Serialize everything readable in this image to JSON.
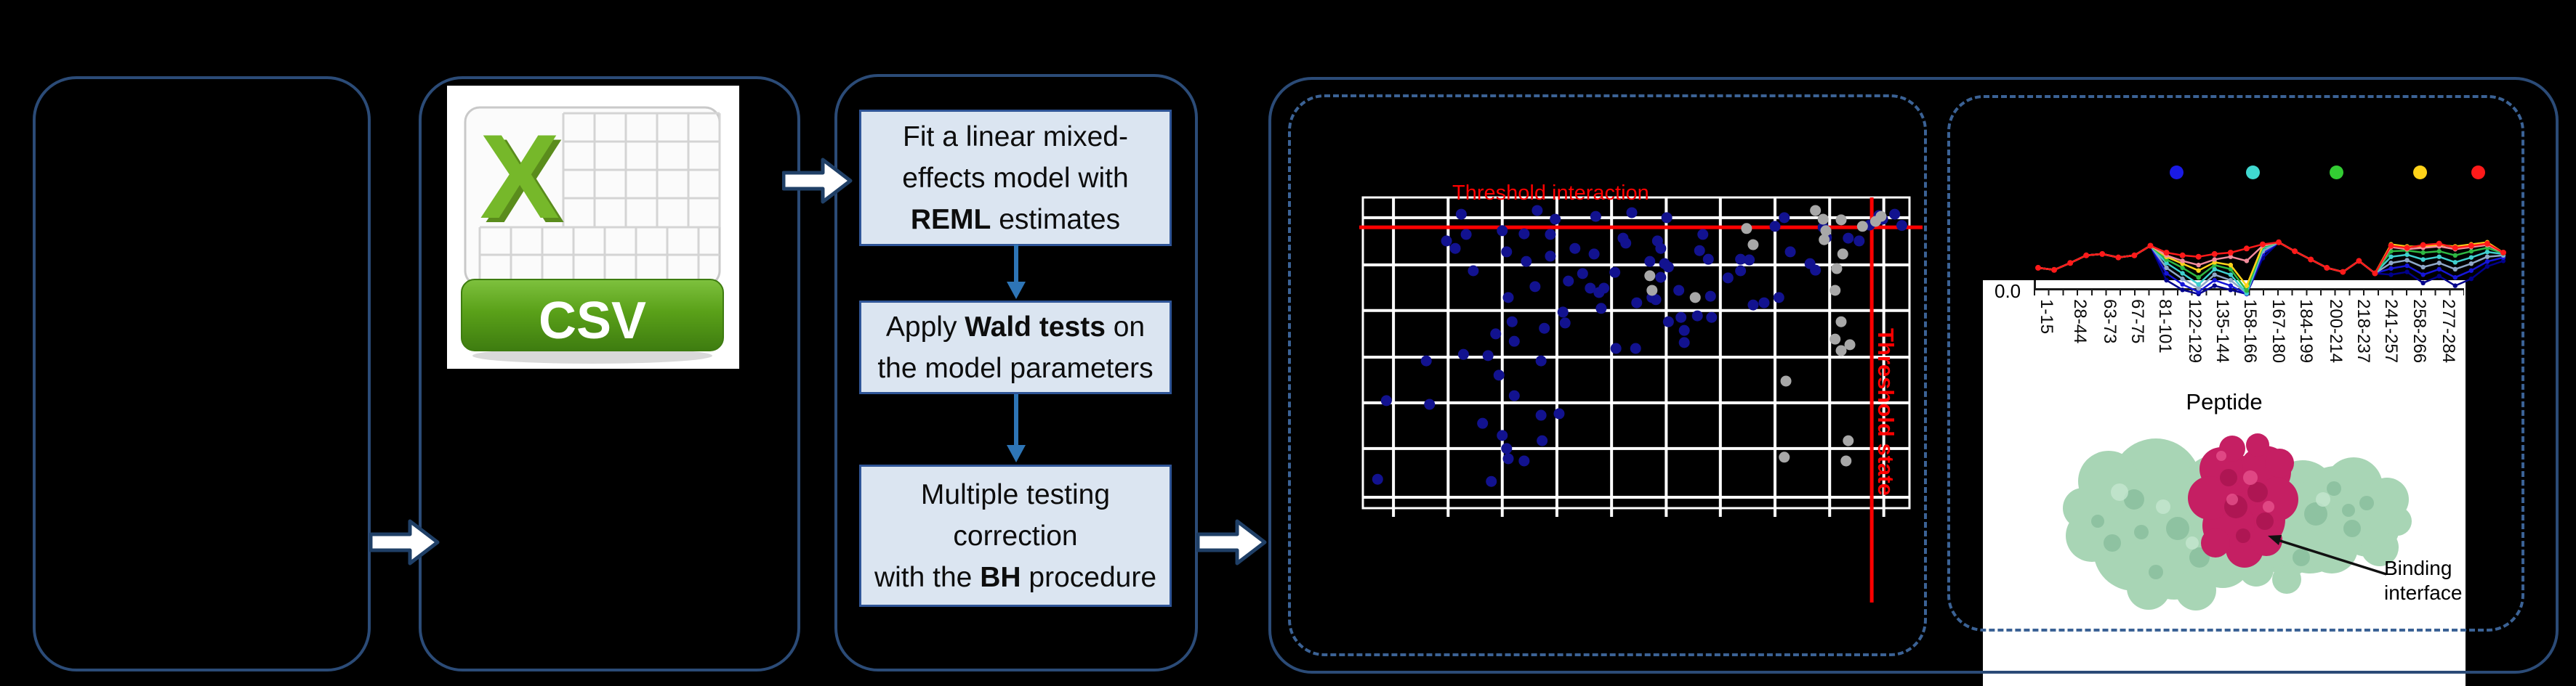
{
  "app": {
    "background": "#000000",
    "accent_border": "#2b4b77",
    "dash_border": "#3b6295"
  },
  "csv_icon": {
    "x_letter": "X",
    "label": "CSV",
    "x_color": "#76b82a",
    "banner_color": "#5aa119"
  },
  "flowchart": {
    "steps": [
      {
        "lines": [
          [
            {
              "t": "Fit a linear mixed-"
            }
          ],
          [
            {
              "t": "effects model with"
            }
          ],
          [
            {
              "t": "REML",
              "b": true
            },
            {
              "t": " estimates"
            }
          ]
        ]
      },
      {
        "lines": [
          [
            {
              "t": "Apply "
            },
            {
              "t": "Wald tests",
              "b": true
            },
            {
              "t": " on"
            }
          ],
          [
            {
              "t": "the model parameters"
            }
          ]
        ]
      },
      {
        "lines": [
          [
            {
              "t": "Multiple testing"
            }
          ],
          [
            {
              "t": "correction"
            }
          ],
          [
            {
              "t": "with the "
            },
            {
              "t": "BH",
              "b": true
            },
            {
              "t": " procedure"
            }
          ]
        ]
      }
    ],
    "connector_color": "#2e75b6"
  },
  "scatter_panel": {
    "title": "Threshold interaction",
    "side_label": "Threshold state",
    "threshold_color": "#ff0000",
    "point_color": "#12128f",
    "nonsig_color": "#a8a8a8"
  },
  "uptake_panel": {
    "y_tick": "0.0",
    "x_axis_label": "Peptide",
    "binding_label": "Binding interface",
    "peptides": [
      "1-15",
      "28-44",
      "63-73",
      "67-75",
      "81-101",
      "122-129",
      "135-144",
      "158-166",
      "167-180",
      "184-199",
      "200-214",
      "218-237",
      "241-257",
      "258-266",
      "277-284"
    ]
  },
  "chart_data": [
    {
      "type": "scatter",
      "title": "Threshold interaction",
      "xlabel": "",
      "ylabel": "",
      "grid": true,
      "x_range_pct": [
        0,
        100
      ],
      "y_range_pct": [
        0,
        100
      ],
      "gridx_pct": [
        5.6,
        15.6,
        25.5,
        35.5,
        45.5,
        55.5,
        65.4,
        75.4,
        85.4,
        95.3
      ],
      "gridy_pct": [
        6.5,
        21.7,
        36.4,
        51.4,
        66.1,
        80.8,
        96.5
      ],
      "threshold_interaction_y_pct": 9.6,
      "threshold_state_x_pct": 93.1,
      "series": [
        {
          "name": "blue_points",
          "color": "#12128f",
          "points": [
            [
              15.3,
              14.0
            ],
            [
              16.9,
              16.4
            ],
            [
              18.9,
              11.9
            ],
            [
              20.2,
              23.6
            ],
            [
              22.9,
              50.9
            ],
            [
              25.5,
              10.7
            ],
            [
              26.3,
              17.5
            ],
            [
              26.6,
              32.2
            ],
            [
              27.3,
              40.0
            ],
            [
              27.7,
              46.3
            ],
            [
              29.5,
              11.7
            ],
            [
              29.9,
              20.6
            ],
            [
              31.5,
              28.7
            ],
            [
              32.6,
              52.6
            ],
            [
              33.2,
              42.1
            ],
            [
              35.2,
              7.0
            ],
            [
              34.3,
              11.9
            ],
            [
              34.3,
              18.9
            ],
            [
              36.6,
              36.9
            ],
            [
              37.0,
              40.4
            ],
            [
              37.6,
              26.9
            ],
            [
              38.8,
              16.4
            ],
            [
              40.2,
              24.5
            ],
            [
              41.6,
              29.2
            ],
            [
              42.3,
              18.2
            ],
            [
              43.2,
              30.6
            ],
            [
              43.6,
              35.7
            ],
            [
              44.1,
              29.2
            ],
            [
              46.1,
              24.1
            ],
            [
              46.3,
              48.6
            ],
            [
              47.6,
              13.1
            ],
            [
              48.1,
              14.7
            ],
            [
              49.9,
              48.6
            ],
            [
              50.1,
              33.9
            ],
            [
              11.6,
              52.6
            ],
            [
              4.3,
              65.4
            ],
            [
              12.2,
              66.6
            ],
            [
              18.4,
              50.5
            ],
            [
              24.9,
              57.2
            ],
            [
              27.7,
              63.8
            ],
            [
              32.6,
              70.1
            ],
            [
              35.9,
              69.6
            ],
            [
              25.5,
              76.6
            ],
            [
              32.8,
              78.3
            ],
            [
              26.3,
              80.8
            ],
            [
              26.6,
              84.1
            ],
            [
              29.5,
              84.8
            ],
            [
              23.5,
              91.4
            ],
            [
              21.9,
              72.7
            ],
            [
              24.3,
              43.9
            ],
            [
              42.6,
              6.1
            ],
            [
              55.6,
              6.5
            ],
            [
              53.9,
              14.0
            ],
            [
              54.5,
              16.4
            ],
            [
              55.2,
              21.3
            ],
            [
              55.9,
              22.4
            ],
            [
              52.5,
              20.6
            ],
            [
              54.5,
              25.7
            ],
            [
              52.9,
              32.2
            ],
            [
              53.6,
              32.9
            ],
            [
              55.9,
              40.0
            ],
            [
              57.8,
              29.9
            ],
            [
              58.2,
              38.6
            ],
            [
              58.8,
              42.8
            ],
            [
              58.8,
              46.7
            ],
            [
              62.2,
              11.9
            ],
            [
              61.6,
              17.1
            ],
            [
              63.2,
              19.9
            ],
            [
              63.6,
              31.8
            ],
            [
              61.2,
              38.1
            ],
            [
              63.8,
              38.6
            ],
            [
              66.8,
              25.9
            ],
            [
              69.1,
              19.9
            ],
            [
              70.7,
              20.1
            ],
            [
              69.1,
              23.6
            ],
            [
              71.4,
              34.6
            ],
            [
              73.4,
              33.9
            ],
            [
              76.1,
              32.2
            ],
            [
              75.4,
              9.3
            ],
            [
              77.1,
              6.5
            ],
            [
              78.2,
              17.5
            ],
            [
              81.8,
              21.3
            ],
            [
              82.8,
              23.4
            ],
            [
              84.2,
              9.6
            ],
            [
              84.8,
              12.9
            ],
            [
              88.8,
              13.1
            ],
            [
              90.8,
              14.0
            ],
            [
              92.7,
              8.9
            ],
            [
              94.4,
              5.8
            ],
            [
              95.1,
              7.0
            ],
            [
              18.0,
              5.4
            ],
            [
              31.9,
              4.2
            ],
            [
              49.2,
              4.9
            ],
            [
              97.3,
              5.4
            ],
            [
              98.6,
              9.0
            ],
            [
              2.7,
              90.7
            ]
          ]
        },
        {
          "name": "gray_points",
          "color": "#a8a8a8",
          "points": [
            [
              52.5,
              25.2
            ],
            [
              52.9,
              29.9
            ],
            [
              60.8,
              32.2
            ],
            [
              70.2,
              10.0
            ],
            [
              71.4,
              15.2
            ],
            [
              77.4,
              59.1
            ],
            [
              77.1,
              83.6
            ],
            [
              82.8,
              4.2
            ],
            [
              84.2,
              7.0
            ],
            [
              84.7,
              10.7
            ],
            [
              84.4,
              13.6
            ],
            [
              87.5,
              7.2
            ],
            [
              87.8,
              18.2
            ],
            [
              86.7,
              22.9
            ],
            [
              86.4,
              29.9
            ],
            [
              87.5,
              40.0
            ],
            [
              86.4,
              45.6
            ],
            [
              89.1,
              47.4
            ],
            [
              87.5,
              49.3
            ],
            [
              88.8,
              78.3
            ],
            [
              88.4,
              84.8
            ],
            [
              91.4,
              9.3
            ],
            [
              93.8,
              7.7
            ],
            [
              94.8,
              6.1
            ]
          ]
        }
      ]
    },
    {
      "type": "line",
      "xlabel": "Peptide",
      "ylabel": "",
      "y_tick_label": "0.0",
      "categories": [
        "1-15",
        "28-44",
        "63-73",
        "67-75",
        "81-101",
        "122-129",
        "135-144",
        "158-166",
        "167-180",
        "184-199",
        "200-214",
        "218-237",
        "241-257",
        "258-266",
        "277-284"
      ],
      "x_point_count": 30,
      "note_values_are_depth_fraction_from_top": true,
      "legend": {
        "position": "top",
        "colors": [
          "#1a1ae6",
          "#40d8d0",
          "#33cc33",
          "#ffd319",
          "#ff1a1a"
        ]
      },
      "series": [
        {
          "name": "navy",
          "color": "#00008b",
          "values": [
            0.62,
            0.65,
            0.55,
            0.44,
            0.42,
            0.47,
            0.44,
            0.3,
            0.8,
            0.94,
            1.0,
            0.88,
            0.94,
            1.0,
            0.48,
            0.25,
            0.38,
            0.5,
            0.62,
            0.68,
            0.52,
            0.7,
            0.72,
            0.68,
            0.84,
            0.74,
            0.88,
            0.78,
            0.6,
            0.52
          ]
        },
        {
          "name": "blue",
          "color": "#1616d8",
          "values": [
            0.62,
            0.65,
            0.55,
            0.44,
            0.42,
            0.47,
            0.44,
            0.3,
            0.7,
            0.86,
            0.97,
            0.8,
            0.88,
            1.0,
            0.42,
            0.25,
            0.38,
            0.5,
            0.62,
            0.68,
            0.52,
            0.7,
            0.63,
            0.59,
            0.72,
            0.64,
            0.76,
            0.66,
            0.53,
            0.47
          ]
        },
        {
          "name": "steel",
          "color": "#8fa8c8",
          "values": [
            0.62,
            0.65,
            0.55,
            0.44,
            0.42,
            0.47,
            0.44,
            0.3,
            0.62,
            0.78,
            0.92,
            0.72,
            0.8,
            0.99,
            0.38,
            0.25,
            0.38,
            0.5,
            0.62,
            0.68,
            0.52,
            0.7,
            0.55,
            0.51,
            0.61,
            0.55,
            0.64,
            0.56,
            0.46,
            0.44
          ]
        },
        {
          "name": "cyan",
          "color": "#3fd0cf",
          "values": [
            0.62,
            0.65,
            0.55,
            0.44,
            0.42,
            0.47,
            0.44,
            0.3,
            0.55,
            0.7,
            0.86,
            0.64,
            0.72,
            0.99,
            0.34,
            0.25,
            0.38,
            0.5,
            0.62,
            0.68,
            0.52,
            0.7,
            0.46,
            0.43,
            0.5,
            0.46,
            0.54,
            0.47,
            0.39,
            0.42
          ]
        },
        {
          "name": "green",
          "color": "#2eb843",
          "values": [
            0.62,
            0.65,
            0.55,
            0.44,
            0.42,
            0.47,
            0.44,
            0.3,
            0.5,
            0.62,
            0.76,
            0.58,
            0.64,
            0.95,
            0.32,
            0.25,
            0.38,
            0.5,
            0.62,
            0.68,
            0.52,
            0.7,
            0.38,
            0.37,
            0.4,
            0.38,
            0.44,
            0.38,
            0.33,
            0.41
          ]
        },
        {
          "name": "yellow",
          "color": "#ffd319",
          "values": [
            0.62,
            0.65,
            0.55,
            0.44,
            0.42,
            0.47,
            0.44,
            0.3,
            0.46,
            0.56,
            0.66,
            0.54,
            0.58,
            0.88,
            0.3,
            0.25,
            0.38,
            0.5,
            0.62,
            0.68,
            0.52,
            0.7,
            0.28,
            0.31,
            0.31,
            0.29,
            0.31,
            0.28,
            0.25,
            0.4
          ]
        },
        {
          "name": "pink",
          "color": "#f28c9c",
          "values": [
            0.62,
            0.65,
            0.55,
            0.44,
            0.42,
            0.47,
            0.44,
            0.3,
            0.44,
            0.52,
            0.58,
            0.5,
            0.46,
            0.52,
            0.3,
            0.25,
            0.38,
            0.5,
            0.62,
            0.68,
            0.52,
            0.7,
            0.32,
            0.35,
            0.33,
            0.31,
            0.35,
            0.32,
            0.29,
            0.4
          ]
        },
        {
          "name": "red",
          "color": "#ff1a1a",
          "values": [
            0.62,
            0.65,
            0.55,
            0.44,
            0.42,
            0.47,
            0.44,
            0.3,
            0.4,
            0.44,
            0.46,
            0.42,
            0.4,
            0.34,
            0.28,
            0.25,
            0.38,
            0.5,
            0.62,
            0.68,
            0.52,
            0.7,
            0.3,
            0.33,
            0.29,
            0.27,
            0.33,
            0.3,
            0.27,
            0.4
          ]
        }
      ]
    }
  ]
}
